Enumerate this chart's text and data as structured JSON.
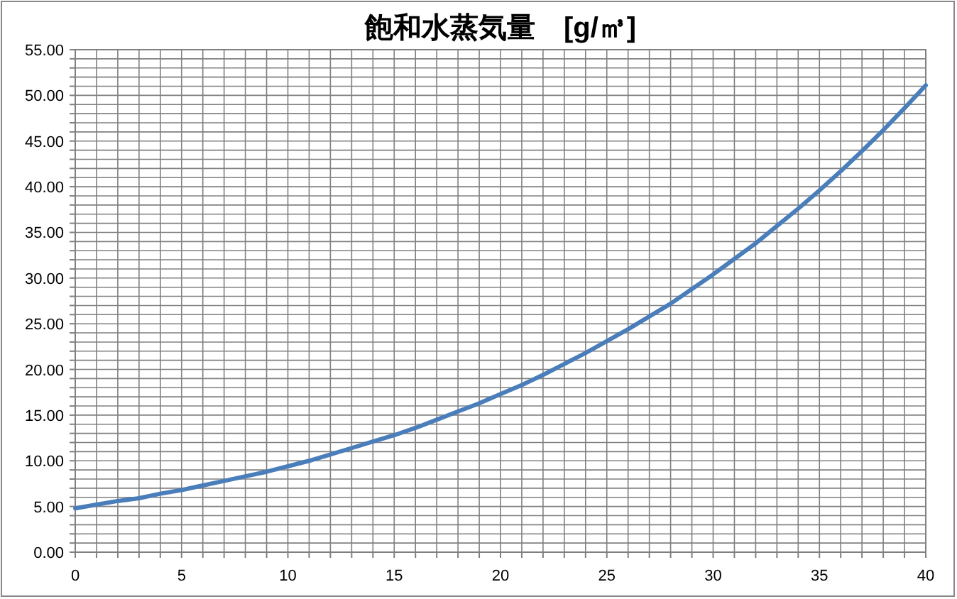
{
  "chart_data": {
    "type": "line",
    "title": "飽和水蒸気量　[g/㎥]",
    "x": [
      0,
      1,
      2,
      3,
      4,
      5,
      6,
      7,
      8,
      9,
      10,
      11,
      12,
      13,
      14,
      15,
      16,
      17,
      18,
      19,
      20,
      21,
      22,
      23,
      24,
      25,
      26,
      27,
      28,
      29,
      30,
      31,
      32,
      33,
      34,
      35,
      36,
      37,
      38,
      39,
      40
    ],
    "series": [
      {
        "color": "#4a7ebb",
        "values": [
          4.8,
          5.2,
          5.6,
          5.9,
          6.4,
          6.8,
          7.3,
          7.8,
          8.3,
          8.8,
          9.4,
          10.0,
          10.7,
          11.4,
          12.1,
          12.8,
          13.6,
          14.5,
          15.4,
          16.3,
          17.3,
          18.3,
          19.4,
          20.6,
          21.8,
          23.1,
          24.4,
          25.8,
          27.2,
          28.8,
          30.4,
          32.1,
          33.8,
          35.7,
          37.6,
          39.6,
          41.7,
          43.9,
          46.2,
          48.6,
          51.1
        ]
      }
    ],
    "xlim": [
      0,
      40
    ],
    "xticks": [
      0,
      {
        "value": 1,
        "label": null
      },
      {
        "value": 2,
        "label": null
      },
      {
        "value": 3,
        "label": null
      },
      {
        "value": 4,
        "label": null
      },
      5,
      {
        "value": 6,
        "label": null
      },
      {
        "value": 7,
        "label": null
      },
      {
        "value": 8,
        "label": null
      },
      {
        "value": 9,
        "label": null
      },
      10,
      {
        "value": 11,
        "label": null
      },
      {
        "value": 12,
        "label": null
      },
      {
        "value": 13,
        "label": null
      },
      {
        "value": 14,
        "label": null
      },
      15,
      {
        "value": 16,
        "label": null
      },
      {
        "value": 17,
        "label": null
      },
      {
        "value": 18,
        "label": null
      },
      {
        "value": 19,
        "label": null
      },
      20,
      {
        "value": 21,
        "label": null
      },
      {
        "value": 22,
        "label": null
      },
      {
        "value": 23,
        "label": null
      },
      {
        "value": 24,
        "label": null
      },
      25,
      {
        "value": 26,
        "label": null
      },
      {
        "value": 27,
        "label": null
      },
      {
        "value": 28,
        "label": null
      },
      {
        "value": 29,
        "label": null
      },
      30,
      {
        "value": 31,
        "label": null
      },
      {
        "value": 32,
        "label": null
      },
      {
        "value": 33,
        "label": null
      },
      {
        "value": 34,
        "label": null
      },
      35,
      {
        "value": 36,
        "label": null
      },
      {
        "value": 37,
        "label": null
      },
      {
        "value": 38,
        "label": null
      },
      {
        "value": 39,
        "label": null
      },
      40
    ],
    "ylim": [
      0,
      55
    ],
    "yticks": [
      {
        "value": 0,
        "label": "0.00"
      },
      {
        "value": 1,
        "label": null
      },
      {
        "value": 2,
        "label": null
      },
      {
        "value": 3,
        "label": null
      },
      {
        "value": 4,
        "label": null
      },
      {
        "value": 5,
        "label": "5.00"
      },
      {
        "value": 6,
        "label": null
      },
      {
        "value": 7,
        "label": null
      },
      {
        "value": 8,
        "label": null
      },
      {
        "value": 9,
        "label": null
      },
      {
        "value": 10,
        "label": "10.00"
      },
      {
        "value": 11,
        "label": null
      },
      {
        "value": 12,
        "label": null
      },
      {
        "value": 13,
        "label": null
      },
      {
        "value": 14,
        "label": null
      },
      {
        "value": 15,
        "label": "15.00"
      },
      {
        "value": 16,
        "label": null
      },
      {
        "value": 17,
        "label": null
      },
      {
        "value": 18,
        "label": null
      },
      {
        "value": 19,
        "label": null
      },
      {
        "value": 20,
        "label": "20.00"
      },
      {
        "value": 21,
        "label": null
      },
      {
        "value": 22,
        "label": null
      },
      {
        "value": 23,
        "label": null
      },
      {
        "value": 24,
        "label": null
      },
      {
        "value": 25,
        "label": "25.00"
      },
      {
        "value": 26,
        "label": null
      },
      {
        "value": 27,
        "label": null
      },
      {
        "value": 28,
        "label": null
      },
      {
        "value": 29,
        "label": null
      },
      {
        "value": 30,
        "label": "30.00"
      },
      {
        "value": 31,
        "label": null
      },
      {
        "value": 32,
        "label": null
      },
      {
        "value": 33,
        "label": null
      },
      {
        "value": 34,
        "label": null
      },
      {
        "value": 35,
        "label": "35.00"
      },
      {
        "value": 36,
        "label": null
      },
      {
        "value": 37,
        "label": null
      },
      {
        "value": 38,
        "label": null
      },
      {
        "value": 39,
        "label": null
      },
      {
        "value": 40,
        "label": "40.00"
      },
      {
        "value": 41,
        "label": null
      },
      {
        "value": 42,
        "label": null
      },
      {
        "value": 43,
        "label": null
      },
      {
        "value": 44,
        "label": null
      },
      {
        "value": 45,
        "label": "45.00"
      },
      {
        "value": 46,
        "label": null
      },
      {
        "value": 47,
        "label": null
      },
      {
        "value": 48,
        "label": null
      },
      {
        "value": 49,
        "label": null
      },
      {
        "value": 50,
        "label": "50.00"
      },
      {
        "value": 51,
        "label": null
      },
      {
        "value": 52,
        "label": null
      },
      {
        "value": 53,
        "label": null
      },
      {
        "value": 54,
        "label": null
      },
      {
        "value": 55,
        "label": "55.00"
      }
    ],
    "grid": true,
    "marker": "none",
    "line_style": "solid"
  }
}
